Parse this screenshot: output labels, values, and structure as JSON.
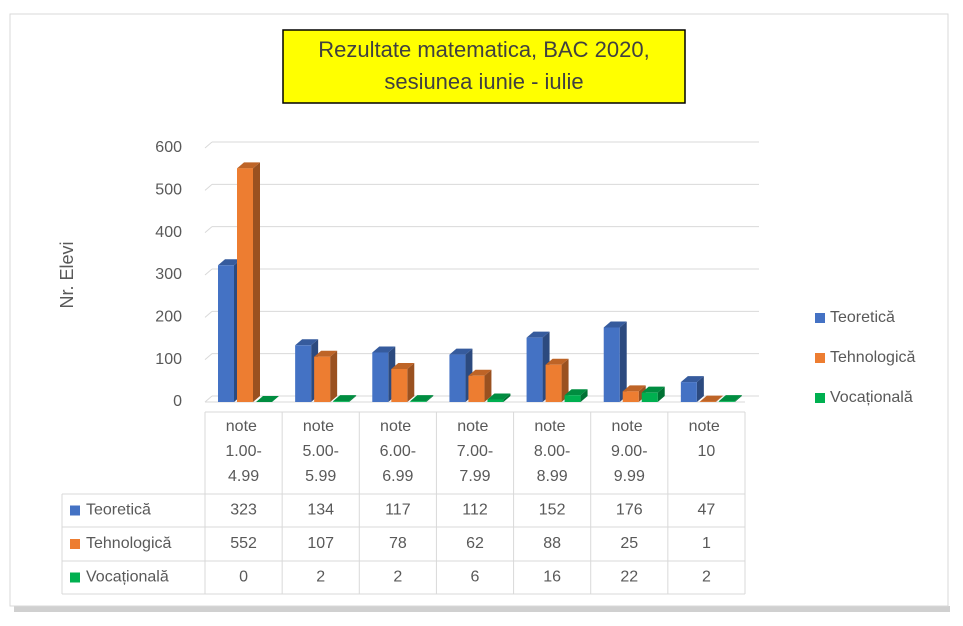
{
  "chart_data": {
    "type": "bar3d",
    "title": [
      "Rezultate matematica, BAC 2020,",
      "sesiunea iunie - iulie"
    ],
    "y_label": "Nr. Elevi",
    "categories": [
      "note 1.00-4.99",
      "note 5.00-5.99",
      "note 6.00-6.99",
      "note 7.00-7.99",
      "note 8.00-8.99",
      "note 9.00-9.99",
      "note 10"
    ],
    "series": [
      {
        "name": "Teoretică",
        "color": "#4472c4",
        "values": [
          323,
          134,
          117,
          112,
          152,
          176,
          47
        ]
      },
      {
        "name": "Tehnologică",
        "color": "#ed7d31",
        "values": [
          552,
          107,
          78,
          62,
          88,
          25,
          1
        ]
      },
      {
        "name": "Vocațională",
        "color": "#00b050",
        "values": [
          0,
          2,
          2,
          6,
          16,
          22,
          2
        ]
      }
    ],
    "ylim": [
      0,
      600
    ],
    "yticks": [
      0,
      100,
      200,
      300,
      400,
      500,
      600
    ],
    "grid": true,
    "legend": "right"
  }
}
